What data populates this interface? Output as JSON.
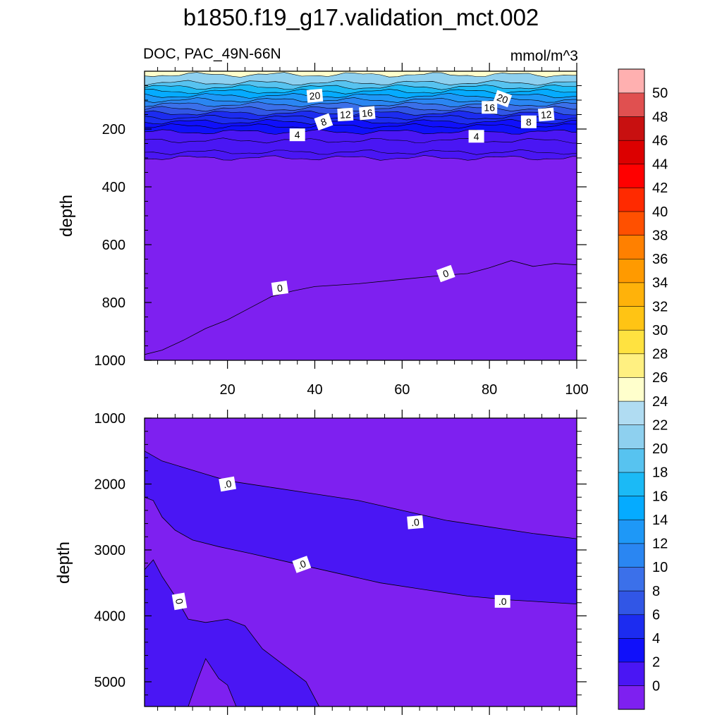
{
  "chart_data": {
    "type": "contour",
    "title": "b1850.f19_g17.validation_mct.002",
    "left_string": "DOC, PAC_49N-66N",
    "right_string": "mmol/m^3",
    "colors": {
      "bands": [
        "#7e20f0",
        "#4a16f4",
        "#1010fa",
        "#1c2cf0",
        "#3156e6",
        "#3b70ea",
        "#2a86f2",
        "#1e98f7",
        "#05abff",
        "#1bbaf6",
        "#57c3f0",
        "#8ed0ef",
        "#b0dcf2",
        "#ffffcc",
        "#fff081",
        "#ffe240",
        "#ffc414",
        "#ffb20a",
        "#ff9a00",
        "#ff8000",
        "#ff5000",
        "#ff2a00",
        "#ff0000",
        "#dc0000",
        "#c81010",
        "#e05050",
        "#ffb0b0"
      ],
      "contour_line": "#000000",
      "axis": "#000000"
    },
    "colorbar": {
      "levels": [
        0,
        2,
        4,
        6,
        8,
        10,
        12,
        14,
        16,
        18,
        20,
        22,
        24,
        26,
        28,
        30,
        32,
        34,
        36,
        38,
        40,
        42,
        44,
        46,
        48,
        50
      ]
    },
    "top_panel": {
      "x_ticks": [
        20,
        40,
        60,
        80,
        100
      ],
      "y_label": "depth",
      "y_ticks": [
        200,
        400,
        600,
        800,
        1000
      ],
      "y_range": [
        0,
        1000
      ],
      "x_range": [
        1,
        100
      ],
      "contour_labels": [
        "20",
        "16",
        "12",
        "8",
        "4",
        "0",
        "20",
        "16",
        "12",
        "8",
        "4",
        "0"
      ],
      "bands_by_depth": [
        {
          "from": 0,
          "to": 40,
          "value": 25
        },
        {
          "from": 40,
          "to": 100,
          "value": 20
        },
        {
          "from": 100,
          "to": 150,
          "value": 14
        },
        {
          "from": 150,
          "to": 200,
          "value": 9
        },
        {
          "from": 200,
          "to": 240,
          "value": 5
        },
        {
          "from": 240,
          "to": 300,
          "value": 3
        },
        {
          "from": 300,
          "to": 720,
          "value": 1
        },
        {
          "from": 720,
          "to": 1000,
          "value": -0.5
        }
      ]
    },
    "bottom_panel": {
      "y_label": "depth",
      "y_ticks": [
        1000,
        2000,
        3000,
        4000,
        5000
      ],
      "y_range": [
        1000,
        5375
      ],
      "x_range": [
        1,
        100
      ],
      "contour_labels": [
        ".0",
        ".0",
        ".0",
        ".0",
        "0"
      ]
    }
  }
}
